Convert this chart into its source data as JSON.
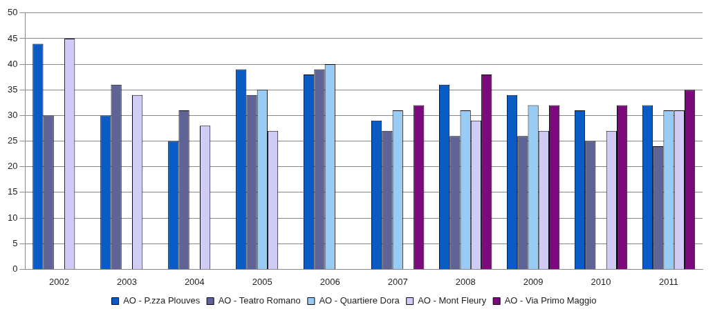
{
  "chart_data": {
    "type": "bar",
    "categories": [
      "2002",
      "2003",
      "2004",
      "2005",
      "2006",
      "2007",
      "2008",
      "2009",
      "2010",
      "2011"
    ],
    "series": [
      {
        "name": "AO - P.zza Plouves",
        "color": "#0a5bc4",
        "values": [
          44,
          30,
          25,
          39,
          38,
          29,
          36,
          34,
          31,
          32
        ]
      },
      {
        "name": "AO - Teatro Romano",
        "color": "#5f6396",
        "values": [
          30,
          36,
          31,
          34,
          39,
          27,
          26,
          26,
          25,
          24
        ]
      },
      {
        "name": "AO - Quartiere Dora",
        "color": "#99ccf5",
        "values": [
          null,
          null,
          null,
          35,
          40,
          31,
          31,
          32,
          null,
          31
        ]
      },
      {
        "name": "AO - Mont Fleury",
        "color": "#d0ccf5",
        "values": [
          45,
          34,
          28,
          27,
          null,
          null,
          29,
          27,
          27,
          31
        ]
      },
      {
        "name": "AO - Via Primo Maggio",
        "color": "#7d0a7d",
        "values": [
          null,
          null,
          null,
          null,
          null,
          32,
          38,
          32,
          32,
          35
        ]
      }
    ],
    "ylim": [
      0,
      50
    ],
    "yticks": [
      0,
      5,
      10,
      15,
      20,
      25,
      30,
      35,
      40,
      45,
      50
    ],
    "grid": "y",
    "legend": "bottom"
  }
}
